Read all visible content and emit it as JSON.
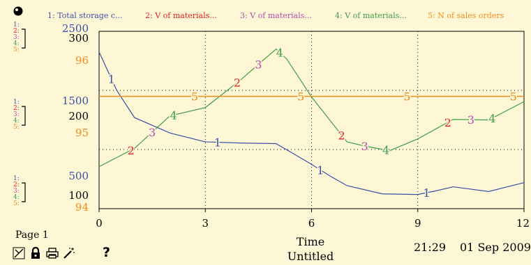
{
  "page_label": "Page 1",
  "time_label": "Time",
  "subtitle": "Untitled",
  "clock": "21:29",
  "date": "01 Sep 2009",
  "help_glyph": "?",
  "legend": [
    {
      "number": "1",
      "label": "1: Total storage c...",
      "color": "#3a4ea6"
    },
    {
      "number": "2",
      "label": "2: V of materials...",
      "color": "#e0201f"
    },
    {
      "number": "3",
      "label": "3: V of materials...",
      "color": "#b44da8"
    },
    {
      "number": "4",
      "label": "4: V of materials...",
      "color": "#3f9e45"
    },
    {
      "number": "5",
      "label": "5: N of sales orders",
      "color": "#ee8d1c"
    }
  ],
  "axis_keys": [
    "1:",
    "2:",
    "3:",
    "4:",
    "5:"
  ],
  "toolbar_icons": [
    "pointer-icon",
    "lock-icon",
    "print-icon",
    "wand-icon"
  ],
  "chart_data": {
    "type": "line",
    "xlabel": "Time",
    "x_ticks": [
      "0",
      "3",
      "6",
      "9",
      "12"
    ],
    "xlim": [
      0,
      12
    ],
    "grid": true,
    "y_scales": [
      {
        "series": "1",
        "ticks": [
          "2500",
          "1500",
          "500"
        ],
        "range": [
          0,
          3000
        ],
        "color": "#3a4ea6"
      },
      {
        "series": "2-4",
        "ticks": [
          "300",
          "200",
          "100"
        ],
        "range": [
          50,
          350
        ],
        "color": "#000000"
      },
      {
        "series": "5",
        "ticks": [
          "96",
          "95",
          "94"
        ],
        "range": [
          93.5,
          96.5
        ],
        "color": "#ee8d1c"
      }
    ],
    "series": [
      {
        "name": "1: Total storage c...",
        "number": "1",
        "color": "#3a4ea6",
        "x": [
          0,
          0.5,
          1,
          2,
          3,
          4,
          5,
          6,
          6.5,
          7,
          8,
          9,
          9.5,
          10,
          11,
          12
        ],
        "y": [
          2650,
          2000,
          1540,
          1280,
          1130,
          1110,
          1100,
          750,
          560,
          390,
          250,
          240,
          300,
          370,
          290,
          440
        ],
        "label_x": [
          0.35,
          3.35,
          6.25,
          9.25
        ]
      },
      {
        "name": "V of materials... (2)",
        "number": "2",
        "color": "#e0201f",
        "x": [
          0,
          1,
          2,
          3,
          4,
          5,
          5.3,
          6,
          7,
          7.5,
          8.2,
          9,
          10,
          11,
          12
        ],
        "y": [
          121,
          152,
          207,
          221,
          268,
          320,
          303,
          239,
          163,
          156,
          148,
          168,
          201,
          200,
          231
        ],
        "label_x": [
          0.9,
          3.9,
          6.85,
          9.85
        ]
      },
      {
        "name": "V of materials... (3)",
        "number": "3",
        "color": "#b44da8",
        "x": [
          0,
          1,
          2,
          3,
          4,
          5,
          5.3,
          6,
          7,
          7.5,
          8.2,
          9,
          10,
          11,
          12
        ],
        "y": [
          121,
          152,
          207,
          221,
          268,
          320,
          303,
          239,
          163,
          156,
          148,
          168,
          201,
          200,
          231
        ],
        "label_x": [
          1.5,
          4.5,
          7.5,
          10.5
        ]
      },
      {
        "name": "V of materials... (4)",
        "number": "4",
        "color": "#3f9e45",
        "x": [
          0,
          1,
          2,
          3,
          4,
          5,
          5.3,
          6,
          7,
          7.5,
          8.2,
          9,
          10,
          11,
          12
        ],
        "y": [
          121,
          152,
          207,
          221,
          268,
          320,
          303,
          239,
          163,
          156,
          148,
          168,
          201,
          200,
          231
        ],
        "label_x": [
          2.1,
          5.1,
          8.1,
          11.1
        ]
      },
      {
        "name": "5: N of sales orders",
        "number": "5",
        "color": "#ee8d1c",
        "x": [
          0,
          12
        ],
        "y": [
          95.4,
          95.4
        ],
        "label_x": [
          2.7,
          5.7,
          8.7,
          11.7
        ]
      }
    ]
  }
}
